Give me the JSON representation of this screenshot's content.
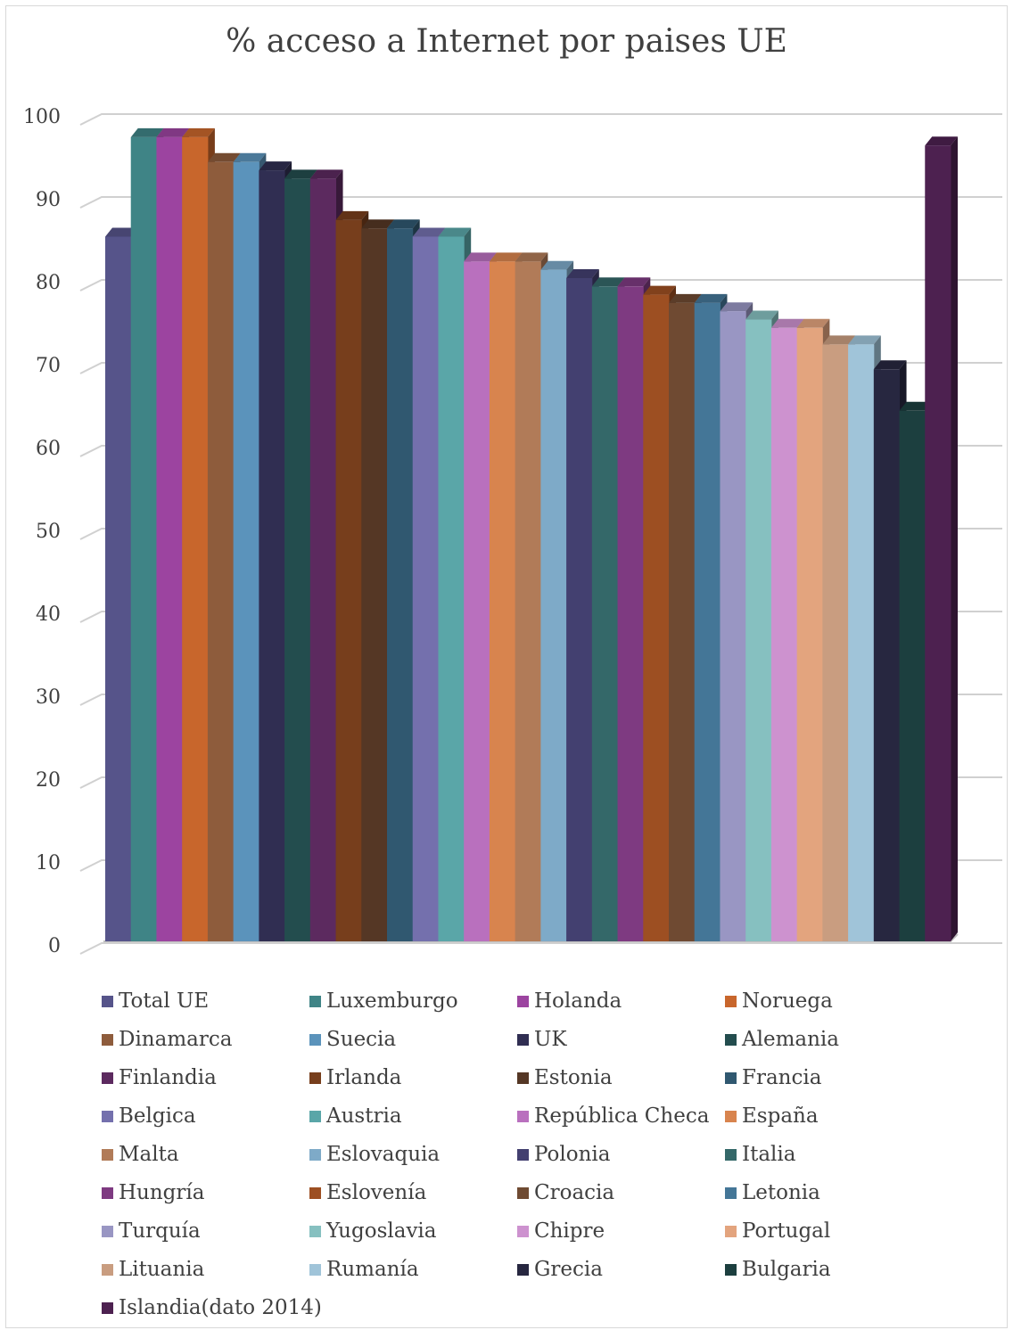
{
  "chart_data": {
    "type": "bar",
    "title": "% acceso a Internet por paises UE",
    "xlabel": "",
    "ylabel": "",
    "ylim": [
      0,
      100
    ],
    "yticks": [
      "0",
      "10",
      "20",
      "30",
      "40",
      "50",
      "60",
      "70",
      "80",
      "90",
      "100"
    ],
    "grid": true,
    "legend": "bottom",
    "series": [
      {
        "name": "Total UE",
        "value": 85,
        "color": "#56548a"
      },
      {
        "name": "Luxemburgo",
        "value": 97,
        "color": "#3f8486"
      },
      {
        "name": "Holanda",
        "value": 97,
        "color": "#9c44a0"
      },
      {
        "name": "Noruega",
        "value": 97,
        "color": "#c8662c"
      },
      {
        "name": "Dinamarca",
        "value": 94,
        "color": "#8e5c3c"
      },
      {
        "name": "Suecia",
        "value": 94,
        "color": "#5b93bb"
      },
      {
        "name": "UK",
        "value": 93,
        "color": "#302e52"
      },
      {
        "name": "Alemania",
        "value": 92,
        "color": "#234d4e"
      },
      {
        "name": "Finlandia",
        "value": 92,
        "color": "#5c2a5f"
      },
      {
        "name": "Irlanda",
        "value": 87,
        "color": "#773e1c"
      },
      {
        "name": "Estonia",
        "value": 86,
        "color": "#553725"
      },
      {
        "name": "Francia",
        "value": 86,
        "color": "#305870"
      },
      {
        "name": "Belgica",
        "value": 85,
        "color": "#7470ad"
      },
      {
        "name": "Austria",
        "value": 85,
        "color": "#5aa6a8"
      },
      {
        "name": "República Checa",
        "value": 82,
        "color": "#b970be"
      },
      {
        "name": "España",
        "value": 82,
        "color": "#d8844e"
      },
      {
        "name": "Malta",
        "value": 82,
        "color": "#b17b58"
      },
      {
        "name": "Eslovaquia",
        "value": 81,
        "color": "#7eaac8"
      },
      {
        "name": "Polonia",
        "value": 80,
        "color": "#434070"
      },
      {
        "name": "Italia",
        "value": 79,
        "color": "#346869"
      },
      {
        "name": "Hungría",
        "value": 79,
        "color": "#7e3a81"
      },
      {
        "name": "Eslovenía",
        "value": 78,
        "color": "#9d4f22"
      },
      {
        "name": "Croacia",
        "value": 77,
        "color": "#6f4a32"
      },
      {
        "name": "Letonia",
        "value": 77,
        "color": "#447697"
      },
      {
        "name": "Turquía",
        "value": 76,
        "color": "#9996c3"
      },
      {
        "name": "Yugoslavia",
        "value": 75,
        "color": "#86c0c0"
      },
      {
        "name": "Chipre",
        "value": 74,
        "color": "#cd92cf"
      },
      {
        "name": "Portugal",
        "value": 74,
        "color": "#e3a47e"
      },
      {
        "name": "Lituania",
        "value": 72,
        "color": "#c99d80"
      },
      {
        "name": "Rumanía",
        "value": 72,
        "color": "#a0c4d9"
      },
      {
        "name": "Grecia",
        "value": 69,
        "color": "#272740"
      },
      {
        "name": "Bulgaria",
        "value": 64,
        "color": "#1c3f3f"
      },
      {
        "name": "Islandia(dato 2014)",
        "value": 96,
        "color": "#4d2150"
      }
    ]
  }
}
